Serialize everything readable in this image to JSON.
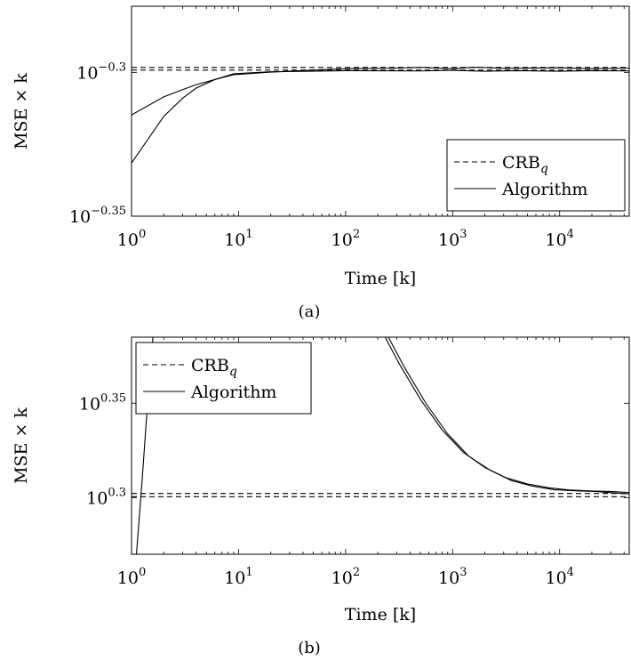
{
  "chart_data": [
    {
      "type": "line",
      "caption": "(a)",
      "xlabel": "Time [k]",
      "ylabel": "MSE × k",
      "x_scale": "log",
      "y_scale": "log",
      "xlim_log10": [
        0,
        4.65
      ],
      "ylim_log10": [
        -0.35,
        -0.277
      ],
      "x_ticks": [
        {
          "base": "10",
          "exp": "0"
        },
        {
          "base": "10",
          "exp": "1"
        },
        {
          "base": "10",
          "exp": "2"
        },
        {
          "base": "10",
          "exp": "3"
        },
        {
          "base": "10",
          "exp": "4"
        }
      ],
      "y_ticks": [
        {
          "base": "10",
          "exp": "−0.35",
          "value_log10": -0.35
        },
        {
          "base": "10",
          "exp": "−0.3",
          "value_log10": -0.3
        }
      ],
      "legend": {
        "position": "bottom-right",
        "entries": [
          {
            "label": "CRB",
            "sub": "q",
            "style": "dashed"
          },
          {
            "label": "Algorithm",
            "style": "solid"
          }
        ]
      },
      "series": [
        {
          "name": "CRB",
          "style": "dashed",
          "points_log10": [
            [
              0,
              -0.2992
            ],
            [
              4.65,
              -0.2992
            ]
          ]
        },
        {
          "name": "CRB",
          "style": "dashed",
          "points_log10": [
            [
              0,
              -0.2983
            ],
            [
              4.65,
              -0.2983
            ]
          ]
        },
        {
          "name": "Algorithm",
          "style": "solid",
          "points_log10": [
            [
              0,
              -0.3315
            ],
            [
              0.301,
              -0.3153
            ],
            [
              0.477,
              -0.309
            ],
            [
              0.602,
              -0.3055
            ],
            [
              0.778,
              -0.3025
            ],
            [
              0.954,
              -0.3005
            ],
            [
              1.3,
              -0.2998
            ],
            [
              2,
              -0.2994
            ],
            [
              2.7,
              -0.2995
            ],
            [
              3,
              -0.2993
            ],
            [
              3.3,
              -0.2996
            ],
            [
              3.6,
              -0.2994
            ],
            [
              4,
              -0.2996
            ],
            [
              4.3,
              -0.2994
            ],
            [
              4.65,
              -0.2995
            ]
          ]
        },
        {
          "name": "Algorithm",
          "style": "solid",
          "points_log10": [
            [
              0,
              -0.3148
            ],
            [
              0.301,
              -0.3085
            ],
            [
              0.477,
              -0.306
            ],
            [
              0.602,
              -0.3043
            ],
            [
              0.778,
              -0.3025
            ],
            [
              0.954,
              -0.3008
            ],
            [
              1.3,
              -0.2999
            ],
            [
              2,
              -0.2987
            ],
            [
              2.5,
              -0.2985
            ],
            [
              2.7,
              -0.2983
            ],
            [
              3,
              -0.2987
            ],
            [
              3.2,
              -0.2982
            ],
            [
              3.5,
              -0.2986
            ],
            [
              4,
              -0.2984
            ],
            [
              4.3,
              -0.2987
            ],
            [
              4.65,
              -0.2985
            ]
          ]
        }
      ]
    },
    {
      "type": "line",
      "caption": "(b)",
      "xlabel": "Time [k]",
      "ylabel": "MSE × k",
      "x_scale": "log",
      "y_scale": "log",
      "xlim_log10": [
        0,
        4.65
      ],
      "ylim_log10": [
        0.27,
        0.385
      ],
      "x_ticks": [
        {
          "base": "10",
          "exp": "0"
        },
        {
          "base": "10",
          "exp": "1"
        },
        {
          "base": "10",
          "exp": "2"
        },
        {
          "base": "10",
          "exp": "3"
        },
        {
          "base": "10",
          "exp": "4"
        }
      ],
      "y_ticks": [
        {
          "base": "10",
          "exp": "0.3",
          "value_log10": 0.3
        },
        {
          "base": "10",
          "exp": "0.35",
          "value_log10": 0.35
        }
      ],
      "legend": {
        "position": "top-left",
        "entries": [
          {
            "label": "CRB",
            "sub": "q",
            "style": "dashed"
          },
          {
            "label": "Algorithm",
            "style": "solid"
          }
        ]
      },
      "series": [
        {
          "name": "CRB",
          "style": "dashed",
          "points_log10": [
            [
              0,
              0.3022
            ],
            [
              4.65,
              0.3022
            ]
          ]
        },
        {
          "name": "CRB",
          "style": "dashed",
          "points_log10": [
            [
              0,
              0.3005
            ],
            [
              4.65,
              0.3005
            ]
          ]
        },
        {
          "name": "Algorithm",
          "style": "solid",
          "points_log10": [
            [
              0.046,
              0.27
            ],
            [
              0.1,
              0.31
            ],
            [
              0.15,
              0.35
            ],
            [
              0.2,
              0.385
            ]
          ]
        },
        {
          "name": "Algorithm",
          "style": "solid",
          "points_log10": [
            [
              2.37,
              0.385
            ],
            [
              2.5,
              0.371
            ],
            [
              2.7,
              0.352
            ],
            [
              2.9,
              0.336
            ],
            [
              3.1,
              0.324
            ],
            [
              3.3,
              0.316
            ],
            [
              3.5,
              0.3105
            ],
            [
              3.7,
              0.3072
            ],
            [
              3.9,
              0.3052
            ],
            [
              4.1,
              0.304
            ],
            [
              4.3,
              0.3035
            ],
            [
              4.5,
              0.3032
            ],
            [
              4.65,
              0.3027
            ]
          ]
        },
        {
          "name": "Algorithm",
          "style": "solid",
          "points_log10": [
            [
              2.4,
              0.385
            ],
            [
              2.55,
              0.369
            ],
            [
              2.75,
              0.35
            ],
            [
              2.95,
              0.334
            ],
            [
              3.15,
              0.322
            ],
            [
              3.35,
              0.3145
            ],
            [
              3.55,
              0.309
            ],
            [
              3.75,
              0.306
            ],
            [
              3.95,
              0.3042
            ],
            [
              4.15,
              0.3036
            ],
            [
              4.35,
              0.3032
            ],
            [
              4.5,
              0.3025
            ],
            [
              4.65,
              0.302
            ]
          ]
        }
      ]
    }
  ]
}
